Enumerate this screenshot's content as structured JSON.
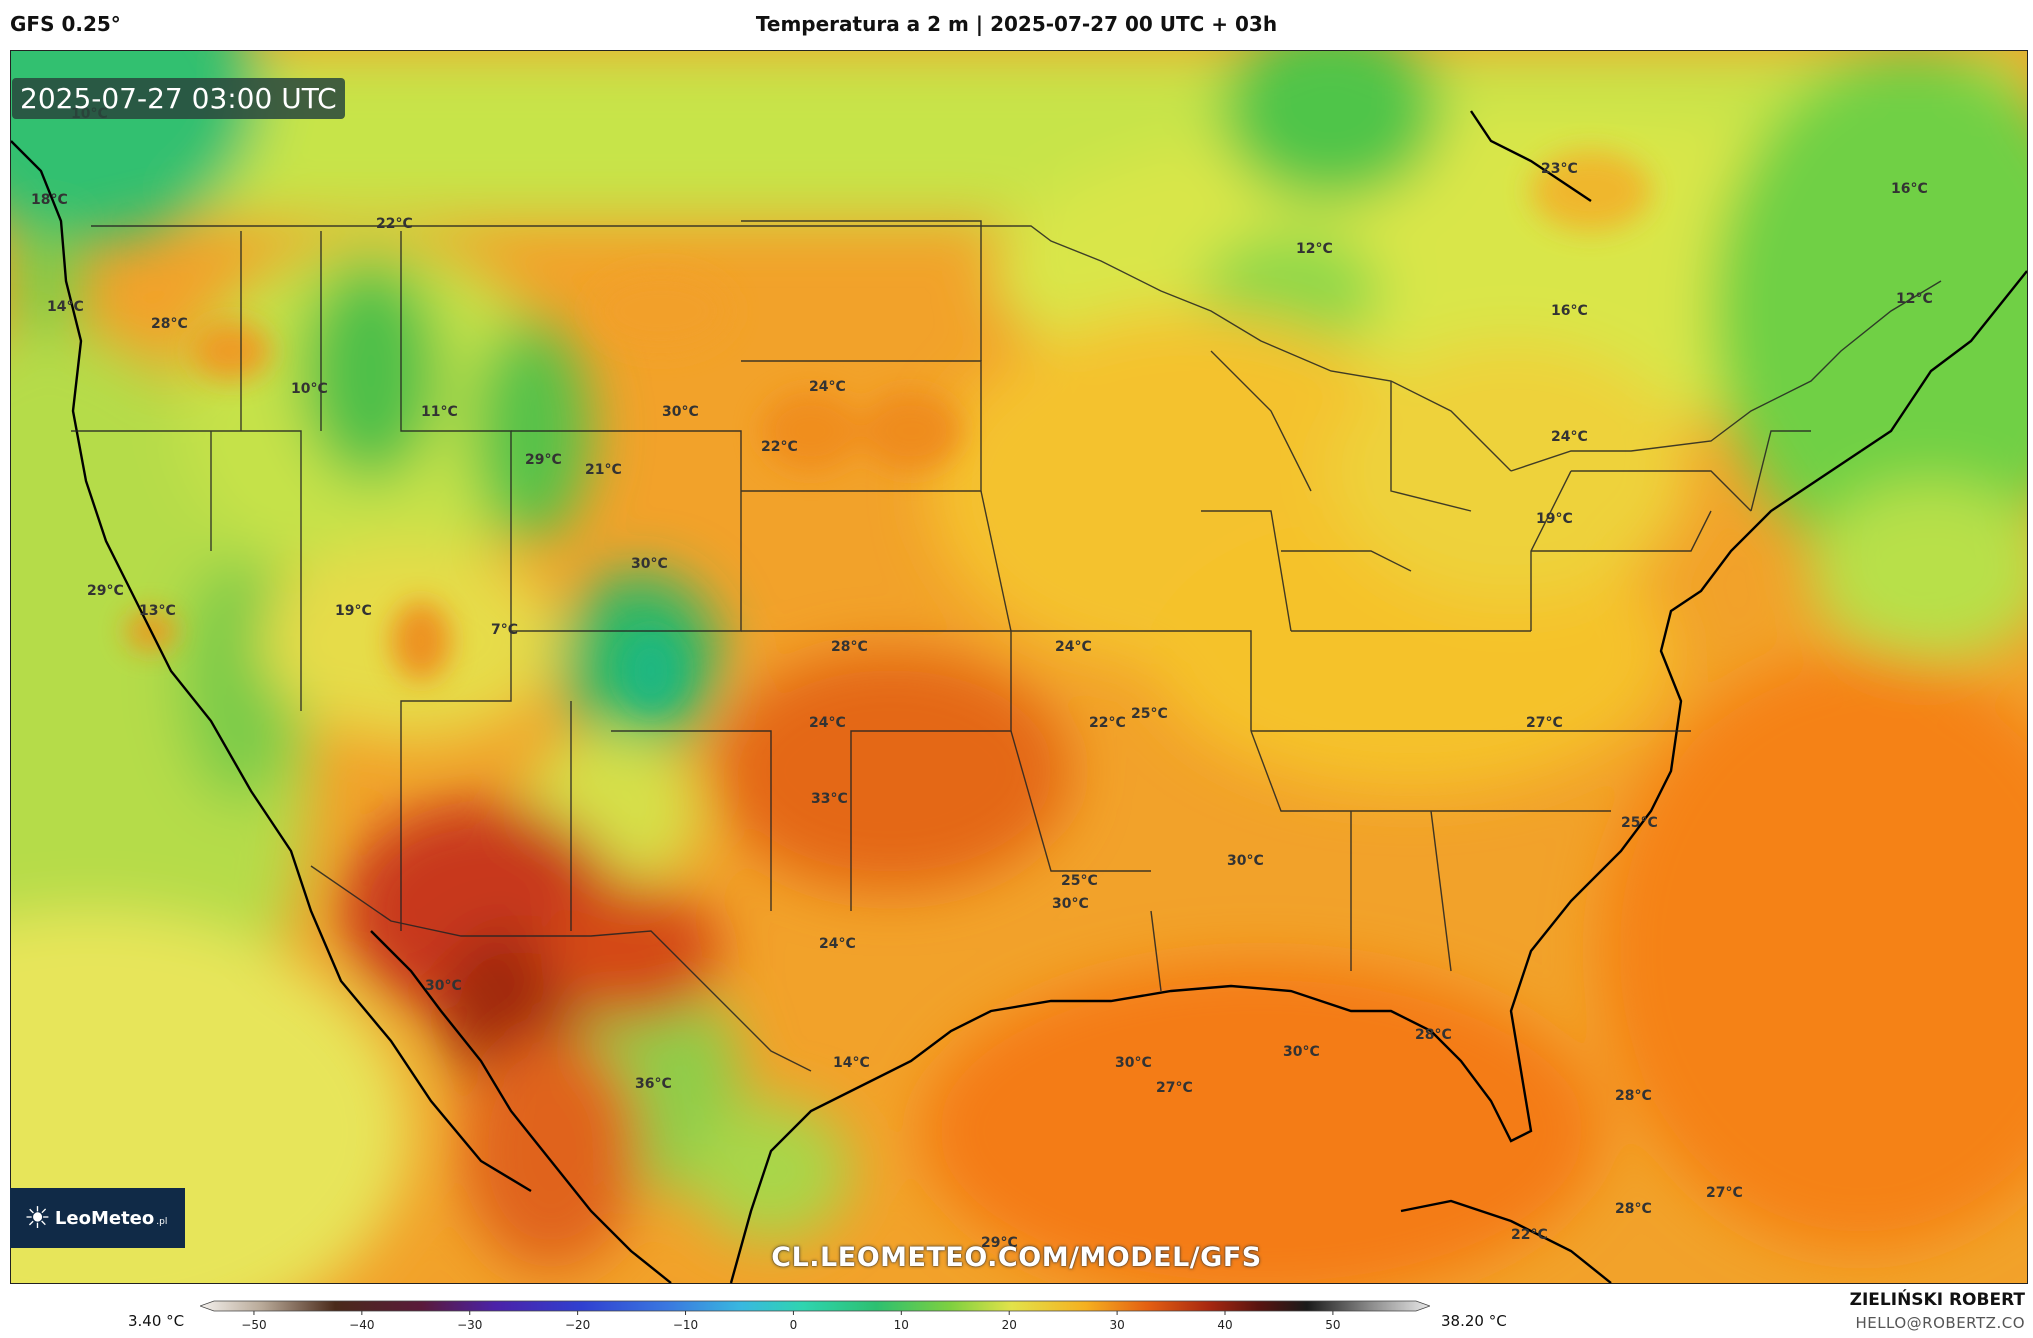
{
  "header": {
    "model": "GFS 0.25°",
    "title": "Temperatura a 2 m | 2025-07-27 00 UTC + 03h"
  },
  "map": {
    "valid_time": "2025-07-27 03:00 UTC",
    "watermark": "CL.LEOMETEO.COM/MODEL/GFS",
    "labels": [
      "10°C",
      "18°C",
      "14°C",
      "28°C",
      "22°C",
      "10°C",
      "11°C",
      "29°C",
      "30°C",
      "21°C",
      "22°C",
      "24°C",
      "30°C",
      "29°C",
      "13°C",
      "19°C",
      "7°C",
      "33°C",
      "28°C",
      "24°C",
      "24°C",
      "22°C",
      "25°C",
      "25°C",
      "24°C",
      "30°C",
      "36°C",
      "14°C",
      "30°C",
      "30°C",
      "30°C",
      "27°C",
      "30°C",
      "28°C",
      "28°C",
      "27°C",
      "28°C",
      "22°C",
      "29°C",
      "27°C",
      "25°C",
      "23°C",
      "12°C",
      "16°C",
      "16°C",
      "12°C",
      "24°C",
      "19°C"
    ]
  },
  "logo": {
    "brand": "LeoMeteo",
    "suffix": ".pl",
    "icon": "sun-icon"
  },
  "colorbar": {
    "min_label": "3.40 °C",
    "max_label": "38.20 °C",
    "ticks": [
      "−50",
      "−40",
      "−30",
      "−20",
      "−10",
      "0",
      "10",
      "20",
      "30",
      "40",
      "50"
    ],
    "range": [
      -55,
      59
    ],
    "unit": "°C"
  },
  "footer": {
    "author": "ZIELIŃSKI ROBERT",
    "email": "HELLO@ROBERTZ.CO"
  },
  "colors": {
    "cold_green": "#2fbf60",
    "mild_yellow": "#f2e84a",
    "warm_orange": "#f29a1a",
    "hot_red": "#e05a10",
    "very_hot": "#9a2a10"
  }
}
